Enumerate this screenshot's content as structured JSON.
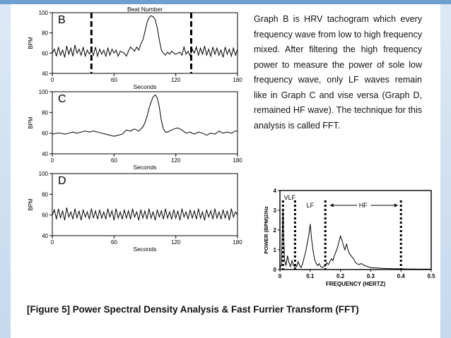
{
  "chart_data": [
    {
      "type": "line",
      "panel": "B",
      "top_label": "Beat Number",
      "xlabel": "Seconds",
      "ylabel": "BPM",
      "xlim": [
        0,
        180
      ],
      "ylim": [
        40,
        100
      ],
      "xticks": [
        "0",
        "60",
        "120",
        "180"
      ],
      "yticks": [
        "40",
        "60",
        "80",
        "100"
      ],
      "markers_x": [
        38,
        135
      ],
      "x": [
        0,
        2,
        4,
        6,
        8,
        10,
        12,
        14,
        16,
        18,
        20,
        22,
        24,
        26,
        28,
        30,
        32,
        34,
        36,
        38,
        40,
        42,
        44,
        46,
        48,
        50,
        52,
        54,
        56,
        58,
        60,
        62,
        64,
        66,
        68,
        70,
        72,
        74,
        76,
        78,
        80,
        82,
        84,
        86,
        88,
        90,
        92,
        94,
        96,
        98,
        100,
        102,
        104,
        106,
        108,
        110,
        112,
        114,
        116,
        118,
        120,
        122,
        124,
        126,
        128,
        130,
        132,
        134,
        136,
        138,
        140,
        142,
        144,
        146,
        148,
        150,
        152,
        154,
        156,
        158,
        160,
        162,
        164,
        166,
        168,
        170,
        172,
        174,
        176,
        178,
        180
      ],
      "values": [
        60,
        64,
        57,
        66,
        58,
        63,
        56,
        67,
        59,
        65,
        57,
        68,
        60,
        64,
        58,
        66,
        57,
        63,
        59,
        62,
        58,
        66,
        57,
        64,
        59,
        63,
        57,
        65,
        58,
        64,
        60,
        63,
        57,
        62,
        61,
        60,
        57,
        62,
        66,
        64,
        62,
        66,
        63,
        69,
        73,
        81,
        90,
        95,
        97,
        96,
        93,
        85,
        73,
        63,
        60,
        58,
        61,
        59,
        62,
        60,
        59,
        60,
        61,
        58,
        66,
        59,
        62,
        57,
        64,
        60,
        66,
        58,
        65,
        59,
        67,
        58,
        64,
        57,
        66,
        59,
        65,
        58,
        63,
        56,
        66,
        59,
        64,
        57,
        65,
        58,
        64
      ]
    },
    {
      "type": "line",
      "panel": "C",
      "xlabel": "Seconds",
      "ylabel": "BPM",
      "xlim": [
        0,
        180
      ],
      "ylim": [
        40,
        100
      ],
      "xticks": [
        "0",
        "60",
        "120",
        "180"
      ],
      "yticks": [
        "40",
        "60",
        "80",
        "100"
      ],
      "x": [
        0,
        4,
        8,
        12,
        16,
        20,
        24,
        28,
        32,
        36,
        40,
        44,
        48,
        52,
        56,
        60,
        64,
        68,
        72,
        76,
        80,
        84,
        88,
        90,
        92,
        94,
        96,
        98,
        100,
        102,
        104,
        106,
        108,
        110,
        112,
        114,
        118,
        122,
        126,
        130,
        134,
        138,
        142,
        146,
        150,
        154,
        158,
        162,
        166,
        170,
        174,
        178,
        180
      ],
      "values": [
        59,
        60,
        60,
        59,
        60,
        61,
        60,
        61,
        62,
        61,
        62,
        61,
        60,
        59,
        58,
        57,
        58,
        59,
        63,
        62,
        64,
        62,
        66,
        70,
        76,
        84,
        90,
        95,
        97,
        94,
        85,
        72,
        64,
        61,
        61,
        62,
        64,
        65,
        63,
        60,
        61,
        59,
        61,
        60,
        58,
        60,
        59,
        62,
        60,
        61,
        60,
        62,
        62
      ]
    },
    {
      "type": "line",
      "panel": "D",
      "xlabel": "Seconds",
      "ylabel": "BPM",
      "xlim": [
        0,
        180
      ],
      "ylim": [
        40,
        100
      ],
      "xticks": [
        "0",
        "60",
        "120",
        "180"
      ],
      "yticks": [
        "40",
        "60",
        "80",
        "100"
      ],
      "x": [
        0,
        2,
        4,
        6,
        8,
        10,
        12,
        14,
        16,
        18,
        20,
        22,
        24,
        26,
        28,
        30,
        32,
        34,
        36,
        38,
        40,
        42,
        44,
        46,
        48,
        50,
        52,
        54,
        56,
        58,
        60,
        62,
        64,
        66,
        68,
        70,
        72,
        74,
        76,
        78,
        80,
        82,
        84,
        86,
        88,
        90,
        92,
        94,
        96,
        98,
        100,
        102,
        104,
        106,
        108,
        110,
        112,
        114,
        116,
        118,
        120,
        122,
        124,
        126,
        128,
        130,
        132,
        134,
        136,
        138,
        140,
        142,
        144,
        146,
        148,
        150,
        152,
        154,
        156,
        158,
        160,
        162,
        164,
        166,
        168,
        170,
        172,
        174,
        176,
        178,
        180
      ],
      "values": [
        60,
        65,
        56,
        66,
        57,
        64,
        55,
        67,
        58,
        63,
        56,
        66,
        57,
        64,
        55,
        65,
        58,
        63,
        56,
        66,
        57,
        64,
        56,
        65,
        57,
        63,
        56,
        66,
        58,
        64,
        55,
        66,
        57,
        63,
        56,
        65,
        57,
        64,
        56,
        66,
        58,
        63,
        55,
        65,
        57,
        64,
        56,
        66,
        57,
        63,
        55,
        65,
        58,
        64,
        56,
        66,
        57,
        63,
        56,
        65,
        57,
        64,
        55,
        66,
        58,
        63,
        56,
        65,
        57,
        64,
        56,
        66,
        57,
        63,
        55,
        65,
        58,
        64,
        56,
        66,
        57,
        63,
        56,
        65,
        57,
        64,
        55,
        66,
        58,
        63,
        60
      ]
    },
    {
      "type": "line",
      "panel": "spectrum",
      "xlabel": "FREQUENCY (HERTZ)",
      "ylabel": "POWER (BPM)2/Hz",
      "xlim": [
        0,
        0.5
      ],
      "ylim": [
        0,
        4
      ],
      "xticks": [
        "0",
        "0.1",
        "0.2",
        "0.3",
        "0.4",
        "0.5"
      ],
      "yticks": [
        "0",
        "1",
        "2",
        "3",
        "4"
      ],
      "band_lines": [
        0.01,
        0.05,
        0.15,
        0.4
      ],
      "band_labels": [
        "VLF",
        "LF",
        "HF"
      ],
      "x": [
        0,
        0.005,
        0.01,
        0.015,
        0.02,
        0.025,
        0.03,
        0.035,
        0.04,
        0.045,
        0.05,
        0.055,
        0.06,
        0.065,
        0.07,
        0.075,
        0.08,
        0.085,
        0.09,
        0.095,
        0.1,
        0.105,
        0.11,
        0.115,
        0.12,
        0.125,
        0.13,
        0.135,
        0.14,
        0.145,
        0.15,
        0.155,
        0.16,
        0.165,
        0.17,
        0.175,
        0.18,
        0.185,
        0.19,
        0.195,
        0.2,
        0.205,
        0.21,
        0.215,
        0.22,
        0.225,
        0.23,
        0.235,
        0.24,
        0.245,
        0.25,
        0.26,
        0.27,
        0.28,
        0.29,
        0.3,
        0.32,
        0.34,
        0.36,
        0.38,
        0.4,
        0.42,
        0.44,
        0.46,
        0.48,
        0.5
      ],
      "values": [
        0.05,
        0.25,
        3.0,
        0.5,
        0.2,
        0.7,
        0.35,
        0.15,
        0.45,
        0.2,
        0.1,
        0.15,
        0.4,
        0.2,
        0.1,
        0.3,
        0.6,
        0.9,
        1.3,
        1.7,
        2.3,
        1.5,
        0.9,
        0.5,
        0.3,
        0.2,
        0.3,
        0.15,
        0.1,
        0.15,
        0.2,
        0.35,
        0.25,
        0.4,
        0.55,
        0.45,
        0.7,
        0.9,
        1.1,
        1.4,
        1.7,
        1.5,
        1.2,
        1.0,
        1.3,
        1.0,
        0.8,
        0.7,
        0.6,
        0.5,
        0.35,
        0.25,
        0.3,
        0.2,
        0.15,
        0.1,
        0.08,
        0.06,
        0.05,
        0.04,
        0.04,
        0.03,
        0.03,
        0.02,
        0.02,
        0.02
      ]
    }
  ],
  "paragraph": "Graph B is HRV tachogram which every frequency wave from low to high frequency mixed. After filtering the high frequency power to measure the power of sole low frequency wave, only LF waves remain like in Graph C and vise versa (Graph D, remained HF wave). The technique for this analysis is called FFT.",
  "caption": "[Figure 5] Power Spectral Density Analysis & Fast Furrier Transform (FFT)",
  "colors": {
    "accent_bar": "#6f9fcf",
    "side_bars": "#c5d9ee",
    "line": "#000000"
  }
}
